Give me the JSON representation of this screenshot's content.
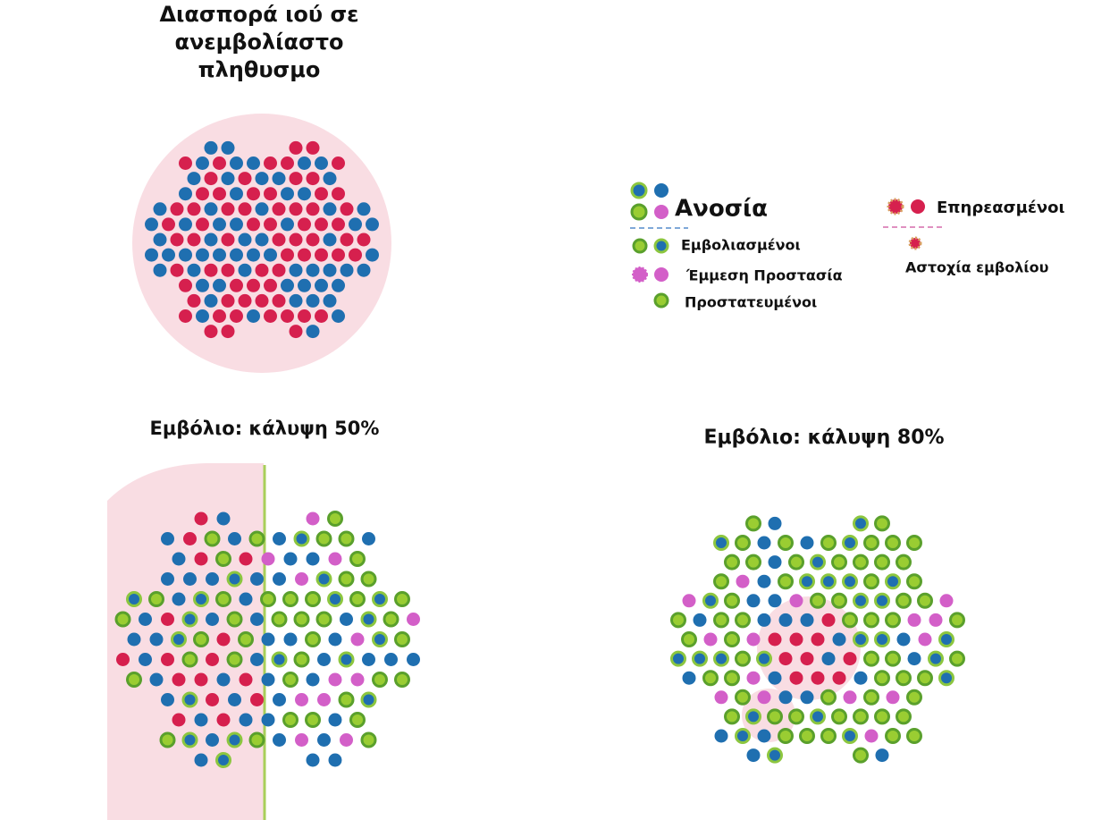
{
  "panels": [
    {
      "title_lines": [
        "Διασπορά ιού σε",
        "ανεμβολίαστο",
        "πληθυσμο"
      ]
    },
    {
      "title": "Εμβόλιο: κάλυψη 50%"
    },
    {
      "title": "Εμβόλιο: κάλυψη 80%"
    }
  ],
  "legend": {
    "immunity": {
      "heading": "Ανοσία",
      "items": [
        "Εμβολιασμένοι",
        "Έμμεση Προστασία",
        "Προστατευμένοι"
      ]
    },
    "affected": {
      "heading": "Επηρεασμένοι",
      "items": [
        "Αστοχία εμβολίου"
      ]
    }
  }
}
